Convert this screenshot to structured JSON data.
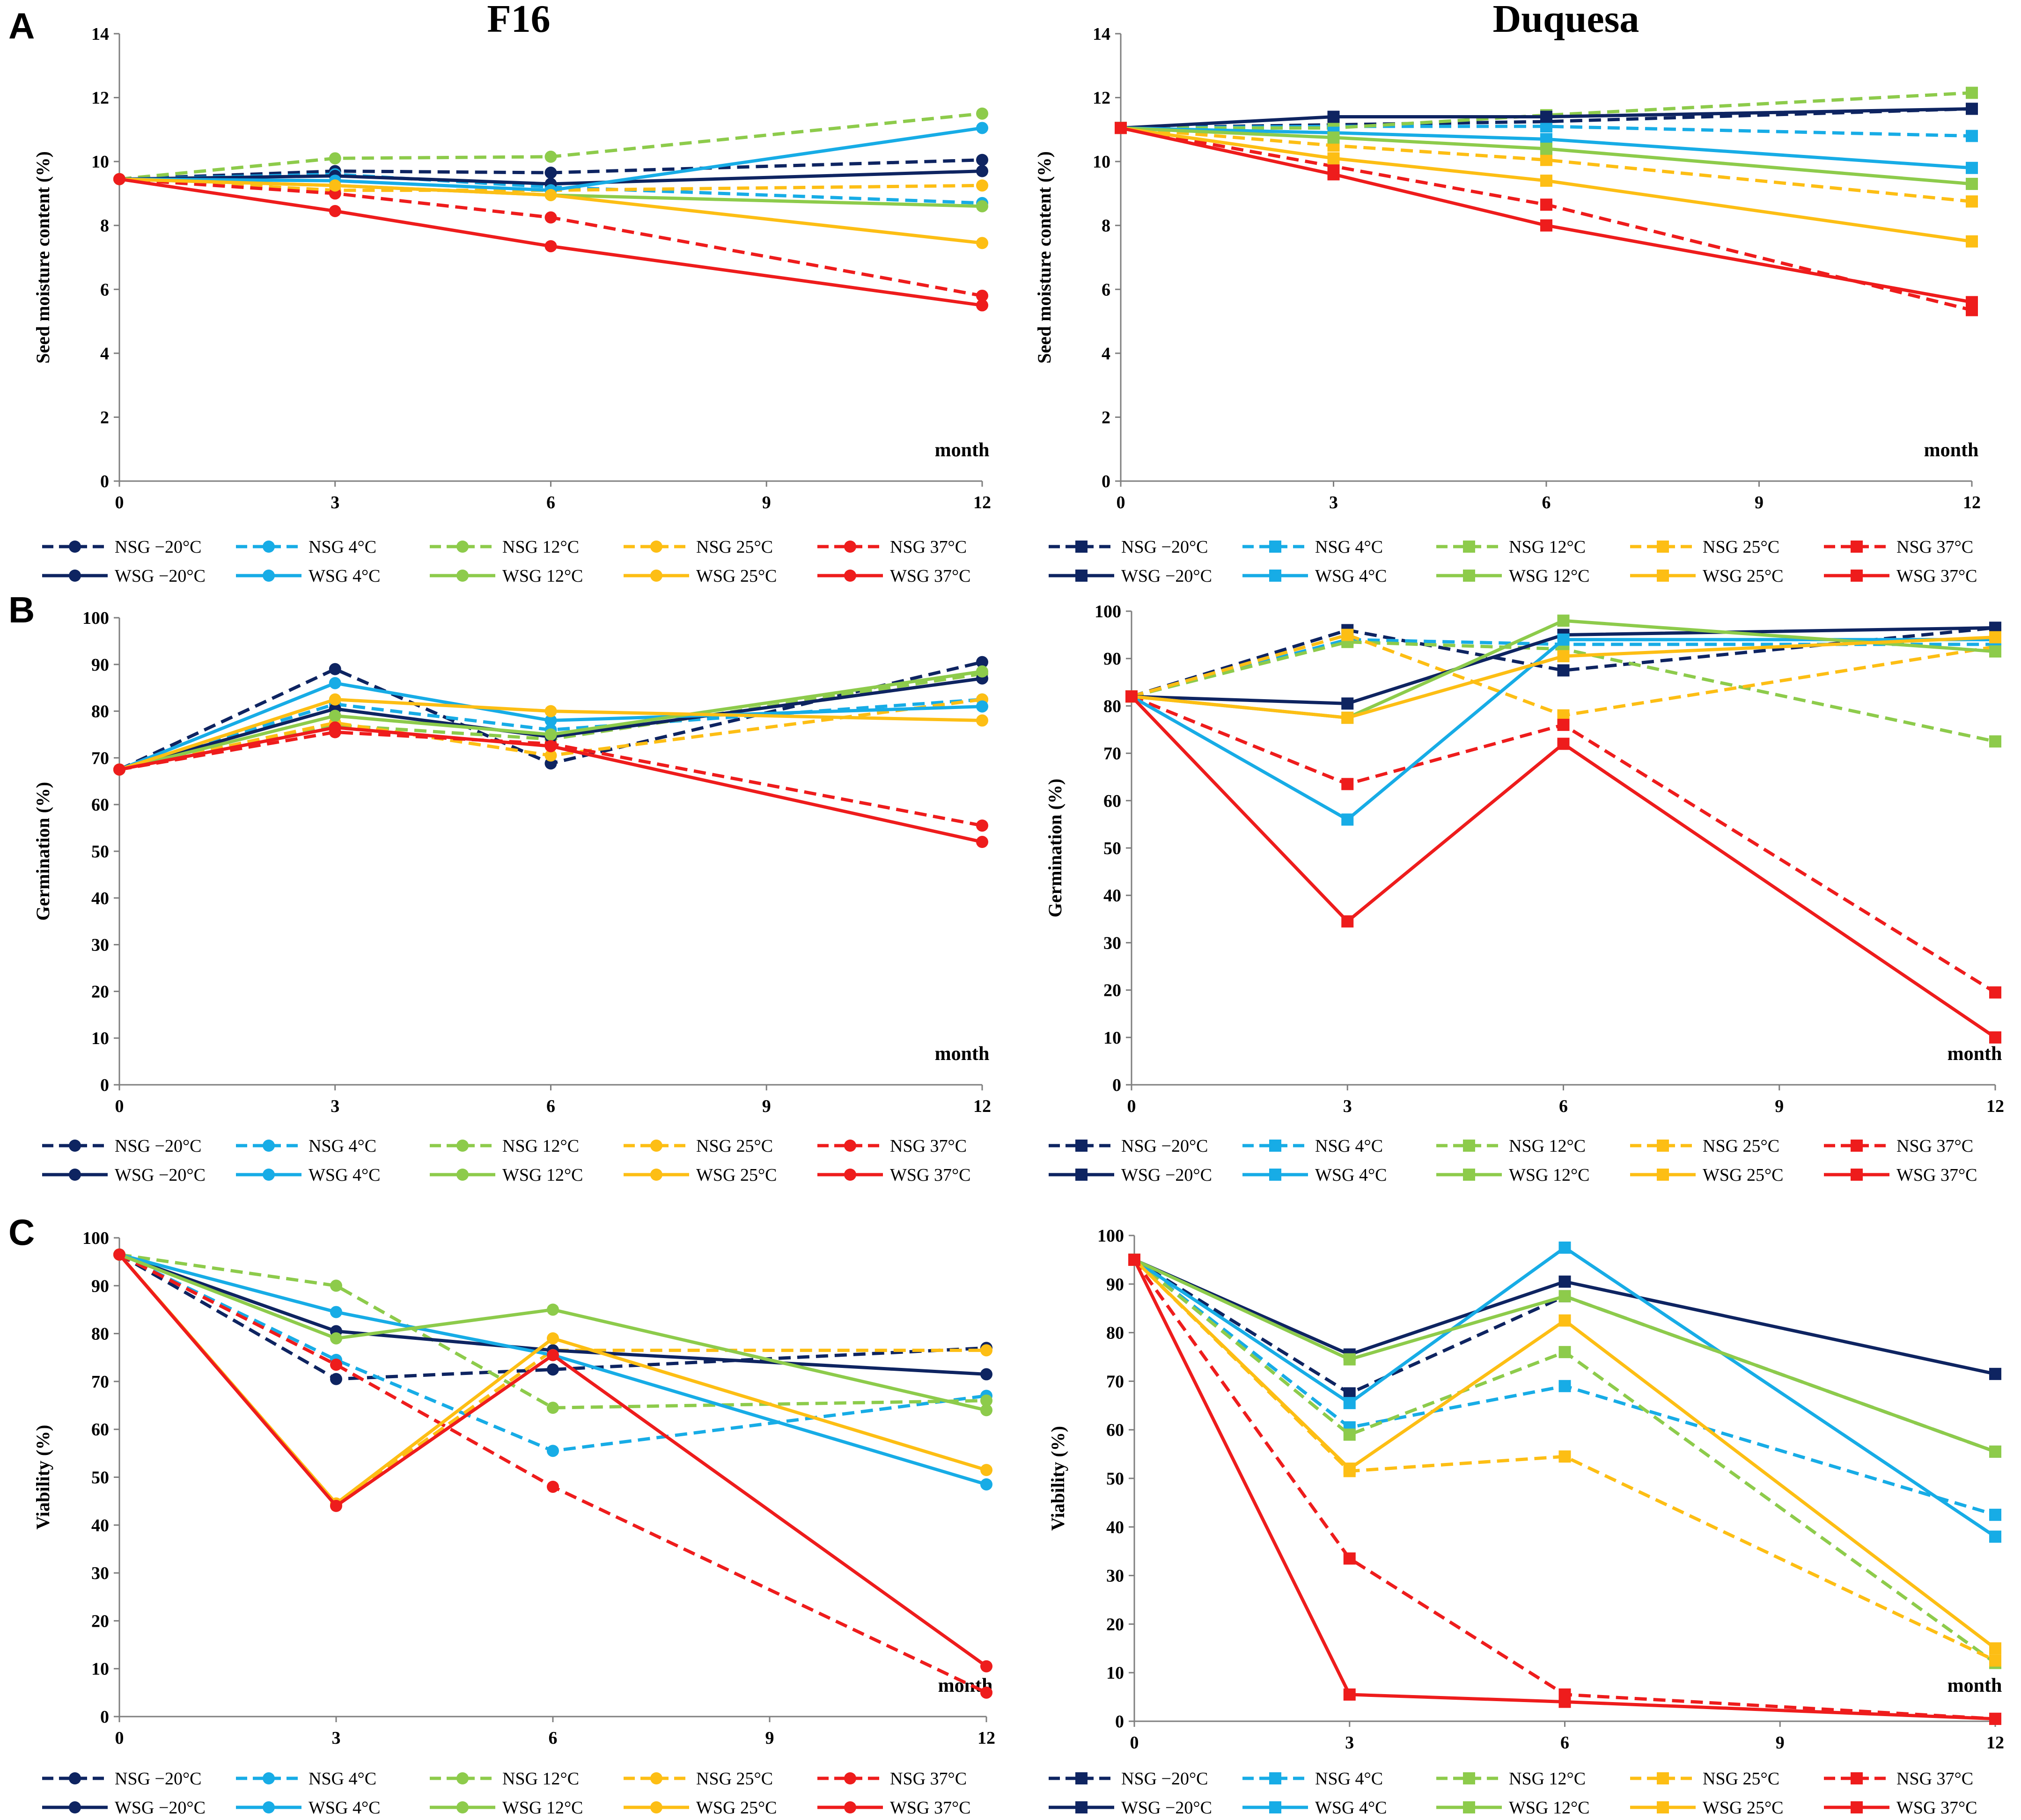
{
  "figure": {
    "panel_letters": [
      "A",
      "B",
      "C"
    ],
    "cultivar_titles": [
      "F16",
      "Duquesa"
    ]
  },
  "colors": {
    "-20": "#0e2461",
    "4": "#17ace6",
    "12": "#8dcb4b",
    "25": "#fdbe14",
    "37": "#ee1c1c"
  },
  "legend": {
    "temps": [
      "-20",
      "4",
      "12",
      "25",
      "37"
    ],
    "nsg_labels": [
      "NSG −20°C",
      "NSG 4°C",
      "NSG 12°C",
      "NSG 25°C",
      "NSG 37°C"
    ],
    "wsg_labels": [
      "WSG −20°C",
      "WSG 4°C",
      "WSG 12°C",
      "WSG 25°C",
      "WSG 37°C"
    ]
  },
  "chart_data": [
    {
      "id": "A-F16",
      "panel": "A",
      "type": "line",
      "title": "F16",
      "marker": "circle",
      "xlabel": "month",
      "ylabel": "Seed moisture content (%)",
      "x": [
        0,
        3,
        6,
        12
      ],
      "xticks": [
        0,
        3,
        6,
        9,
        12
      ],
      "ylim": [
        0,
        14
      ],
      "yticks": [
        0,
        2,
        4,
        6,
        8,
        10,
        12,
        14
      ],
      "series": [
        {
          "name": "NSG −20°C",
          "group": "NSG",
          "temp": "-20",
          "values": [
            9.45,
            9.7,
            9.65,
            10.05
          ]
        },
        {
          "name": "NSG 4°C",
          "group": "NSG",
          "temp": "4",
          "values": [
            9.45,
            9.6,
            9.2,
            8.7
          ]
        },
        {
          "name": "NSG 12°C",
          "group": "NSG",
          "temp": "12",
          "values": [
            9.45,
            10.1,
            10.15,
            11.5
          ]
        },
        {
          "name": "NSG 25°C",
          "group": "NSG",
          "temp": "25",
          "values": [
            9.45,
            9.1,
            9.1,
            9.25
          ]
        },
        {
          "name": "NSG 37°C",
          "group": "NSG",
          "temp": "37",
          "values": [
            9.45,
            9.0,
            8.25,
            5.8
          ]
        },
        {
          "name": "WSG −20°C",
          "group": "WSG",
          "temp": "-20",
          "values": [
            9.45,
            9.55,
            9.3,
            9.7
          ]
        },
        {
          "name": "WSG 4°C",
          "group": "WSG",
          "temp": "4",
          "values": [
            9.45,
            9.4,
            9.1,
            11.05
          ]
        },
        {
          "name": "WSG 12°C",
          "group": "WSG",
          "temp": "12",
          "values": [
            9.45,
            9.25,
            8.95,
            8.6
          ]
        },
        {
          "name": "WSG 25°C",
          "group": "WSG",
          "temp": "25",
          "values": [
            9.45,
            9.25,
            8.95,
            7.45
          ]
        },
        {
          "name": "WSG 37°C",
          "group": "WSG",
          "temp": "37",
          "values": [
            9.45,
            8.45,
            7.35,
            5.5
          ]
        }
      ]
    },
    {
      "id": "A-Duquesa",
      "panel": "A",
      "type": "line",
      "title": "Duquesa",
      "marker": "square",
      "xlabel": "month",
      "ylabel": "Seed moisture content (%)",
      "x": [
        0,
        3,
        6,
        12
      ],
      "xticks": [
        0,
        3,
        6,
        9,
        12
      ],
      "ylim": [
        0,
        14
      ],
      "yticks": [
        0,
        2,
        4,
        6,
        8,
        10,
        12,
        14
      ],
      "series": [
        {
          "name": "NSG −20°C",
          "group": "NSG",
          "temp": "-20",
          "values": [
            11.05,
            11.15,
            11.25,
            11.65
          ]
        },
        {
          "name": "NSG 4°C",
          "group": "NSG",
          "temp": "4",
          "values": [
            11.05,
            11.1,
            11.1,
            10.8
          ]
        },
        {
          "name": "NSG 12°C",
          "group": "NSG",
          "temp": "12",
          "values": [
            11.05,
            11.05,
            11.45,
            12.15
          ]
        },
        {
          "name": "NSG 25°C",
          "group": "NSG",
          "temp": "25",
          "values": [
            11.05,
            10.5,
            10.05,
            8.75
          ]
        },
        {
          "name": "NSG 37°C",
          "group": "NSG",
          "temp": "37",
          "values": [
            11.05,
            9.85,
            8.65,
            5.35
          ]
        },
        {
          "name": "WSG −20°C",
          "group": "WSG",
          "temp": "-20",
          "values": [
            11.05,
            11.4,
            11.4,
            11.65
          ]
        },
        {
          "name": "WSG 4°C",
          "group": "WSG",
          "temp": "4",
          "values": [
            11.05,
            10.9,
            10.7,
            9.8
          ]
        },
        {
          "name": "WSG 12°C",
          "group": "WSG",
          "temp": "12",
          "values": [
            11.05,
            10.75,
            10.4,
            9.3
          ]
        },
        {
          "name": "WSG 25°C",
          "group": "WSG",
          "temp": "25",
          "values": [
            11.05,
            10.1,
            9.4,
            7.5
          ]
        },
        {
          "name": "WSG 37°C",
          "group": "WSG",
          "temp": "37",
          "values": [
            11.05,
            9.6,
            8.0,
            5.6
          ]
        }
      ]
    },
    {
      "id": "B-F16",
      "panel": "B",
      "type": "line",
      "title": "",
      "marker": "circle",
      "xlabel": "month",
      "ylabel": "Germination (%)",
      "x": [
        0,
        3,
        6,
        12
      ],
      "xticks": [
        0,
        3,
        6,
        9,
        12
      ],
      "ylim": [
        0,
        100
      ],
      "yticks": [
        0,
        10,
        20,
        30,
        40,
        50,
        60,
        70,
        80,
        90,
        100
      ],
      "series": [
        {
          "name": "NSG −20°C",
          "group": "NSG",
          "temp": "-20",
          "values": [
            67.5,
            89,
            68.8,
            90.5
          ]
        },
        {
          "name": "NSG 4°C",
          "group": "NSG",
          "temp": "4",
          "values": [
            67.5,
            81.5,
            76,
            82.5
          ]
        },
        {
          "name": "NSG 12°C",
          "group": "NSG",
          "temp": "12",
          "values": [
            67.5,
            77,
            74,
            88
          ]
        },
        {
          "name": "NSG 25°C",
          "group": "NSG",
          "temp": "25",
          "values": [
            67.5,
            77.5,
            70.5,
            82.5
          ]
        },
        {
          "name": "NSG 37°C",
          "group": "NSG",
          "temp": "37",
          "values": [
            67.5,
            75.5,
            73,
            55.5
          ]
        },
        {
          "name": "WSG −20°C",
          "group": "WSG",
          "temp": "-20",
          "values": [
            67.5,
            80.5,
            74.5,
            87
          ]
        },
        {
          "name": "WSG 4°C",
          "group": "WSG",
          "temp": "4",
          "values": [
            67.5,
            86,
            78,
            81
          ]
        },
        {
          "name": "WSG 12°C",
          "group": "WSG",
          "temp": "12",
          "values": [
            67.5,
            79,
            75,
            88.5
          ]
        },
        {
          "name": "WSG 25°C",
          "group": "WSG",
          "temp": "25",
          "values": [
            67.5,
            82.5,
            80,
            78
          ]
        },
        {
          "name": "WSG 37°C",
          "group": "WSG",
          "temp": "37",
          "values": [
            67.5,
            76.5,
            72.5,
            52
          ]
        }
      ]
    },
    {
      "id": "B-Duquesa",
      "panel": "B",
      "type": "line",
      "title": "",
      "marker": "square",
      "xlabel": "month",
      "ylabel": "Germination (%)",
      "x": [
        0,
        3,
        6,
        12
      ],
      "xticks": [
        0,
        3,
        6,
        9,
        12
      ],
      "ylim": [
        0,
        100
      ],
      "yticks": [
        0,
        10,
        20,
        30,
        40,
        50,
        60,
        70,
        80,
        90,
        100
      ],
      "series": [
        {
          "name": "NSG −20°C",
          "group": "NSG",
          "temp": "-20",
          "values": [
            82,
            96,
            87.5,
            96.5
          ]
        },
        {
          "name": "NSG 4°C",
          "group": "NSG",
          "temp": "4",
          "values": [
            82,
            94,
            93,
            93
          ]
        },
        {
          "name": "NSG 12°C",
          "group": "NSG",
          "temp": "12",
          "values": [
            82,
            93.5,
            92,
            72.5
          ]
        },
        {
          "name": "NSG 25°C",
          "group": "NSG",
          "temp": "25",
          "values": [
            82,
            95,
            78,
            92.5
          ]
        },
        {
          "name": "NSG 37°C",
          "group": "NSG",
          "temp": "37",
          "values": [
            82,
            63.5,
            76,
            19.5
          ]
        },
        {
          "name": "WSG −20°C",
          "group": "WSG",
          "temp": "-20",
          "values": [
            82,
            80.5,
            95,
            96.5
          ]
        },
        {
          "name": "WSG 4°C",
          "group": "WSG",
          "temp": "4",
          "values": [
            82,
            56,
            94,
            94
          ]
        },
        {
          "name": "WSG 12°C",
          "group": "WSG",
          "temp": "12",
          "values": [
            82,
            77.5,
            98,
            91.5
          ]
        },
        {
          "name": "WSG 25°C",
          "group": "WSG",
          "temp": "25",
          "values": [
            82,
            77.5,
            90.5,
            94.5
          ]
        },
        {
          "name": "WSG 37°C",
          "group": "WSG",
          "temp": "37",
          "values": [
            82,
            34.5,
            72,
            10
          ]
        }
      ]
    },
    {
      "id": "C-F16",
      "panel": "C",
      "type": "line",
      "title": "",
      "marker": "circle",
      "xlabel": "month",
      "ylabel": "Viability (%)",
      "x": [
        0,
        3,
        6,
        12
      ],
      "xticks": [
        0,
        3,
        6,
        9,
        12
      ],
      "ylim": [
        0,
        100
      ],
      "yticks": [
        0,
        10,
        20,
        30,
        40,
        50,
        60,
        70,
        80,
        90,
        100
      ],
      "series": [
        {
          "name": "NSG −20°C",
          "group": "NSG",
          "temp": "-20",
          "values": [
            96.5,
            70.5,
            72.5,
            77
          ]
        },
        {
          "name": "NSG 4°C",
          "group": "NSG",
          "temp": "4",
          "values": [
            96.5,
            74.5,
            55.5,
            67
          ]
        },
        {
          "name": "NSG 12°C",
          "group": "NSG",
          "temp": "12",
          "values": [
            96.5,
            90,
            64.5,
            66
          ]
        },
        {
          "name": "NSG 25°C",
          "group": "NSG",
          "temp": "25",
          "values": [
            96.5,
            44.5,
            76.5,
            76.5
          ]
        },
        {
          "name": "NSG 37°C",
          "group": "NSG",
          "temp": "37",
          "values": [
            96.5,
            73.5,
            48,
            5
          ]
        },
        {
          "name": "WSG −20°C",
          "group": "WSG",
          "temp": "-20",
          "values": [
            96.5,
            80.5,
            76.5,
            71.5
          ]
        },
        {
          "name": "WSG 4°C",
          "group": "WSG",
          "temp": "4",
          "values": [
            96.5,
            84.5,
            75.5,
            48.5
          ]
        },
        {
          "name": "WSG 12°C",
          "group": "WSG",
          "temp": "12",
          "values": [
            96.5,
            79,
            85,
            64
          ]
        },
        {
          "name": "WSG 25°C",
          "group": "WSG",
          "temp": "25",
          "values": [
            96.5,
            44.5,
            79,
            51.5
          ]
        },
        {
          "name": "WSG 37°C",
          "group": "WSG",
          "temp": "37",
          "values": [
            96.5,
            44,
            75.5,
            10.5
          ]
        }
      ]
    },
    {
      "id": "C-Duquesa",
      "panel": "C",
      "type": "line",
      "title": "",
      "marker": "square",
      "xlabel": "month",
      "ylabel": "Viability (%)",
      "x": [
        0,
        3,
        6,
        12
      ],
      "xticks": [
        0,
        3,
        6,
        9,
        12
      ],
      "ylim": [
        0,
        100
      ],
      "yticks": [
        0,
        10,
        20,
        30,
        40,
        50,
        60,
        70,
        80,
        90,
        100
      ],
      "series": [
        {
          "name": "NSG −20°C",
          "group": "NSG",
          "temp": "-20",
          "values": [
            95,
            67.5,
            87.5,
            55.5
          ]
        },
        {
          "name": "NSG 4°C",
          "group": "NSG",
          "temp": "4",
          "values": [
            95,
            60.5,
            69,
            42.5
          ]
        },
        {
          "name": "NSG 12°C",
          "group": "NSG",
          "temp": "12",
          "values": [
            95,
            59,
            76,
            12
          ]
        },
        {
          "name": "NSG 25°C",
          "group": "NSG",
          "temp": "25",
          "values": [
            95,
            51.5,
            54.5,
            12.5
          ]
        },
        {
          "name": "NSG 37°C",
          "group": "NSG",
          "temp": "37",
          "values": [
            95,
            33.5,
            5.5,
            0.5
          ]
        },
        {
          "name": "WSG −20°C",
          "group": "WSG",
          "temp": "-20",
          "values": [
            95,
            75.5,
            90.5,
            71.5
          ]
        },
        {
          "name": "WSG 4°C",
          "group": "WSG",
          "temp": "4",
          "values": [
            95,
            65.5,
            97.5,
            38
          ]
        },
        {
          "name": "WSG 12°C",
          "group": "WSG",
          "temp": "12",
          "values": [
            95,
            74.5,
            87.5,
            55.5
          ]
        },
        {
          "name": "WSG 25°C",
          "group": "WSG",
          "temp": "25",
          "values": [
            95,
            52,
            82.5,
            15
          ]
        },
        {
          "name": "WSG 37°C",
          "group": "WSG",
          "temp": "37",
          "values": [
            95,
            5.5,
            4,
            0.5
          ]
        }
      ]
    }
  ]
}
